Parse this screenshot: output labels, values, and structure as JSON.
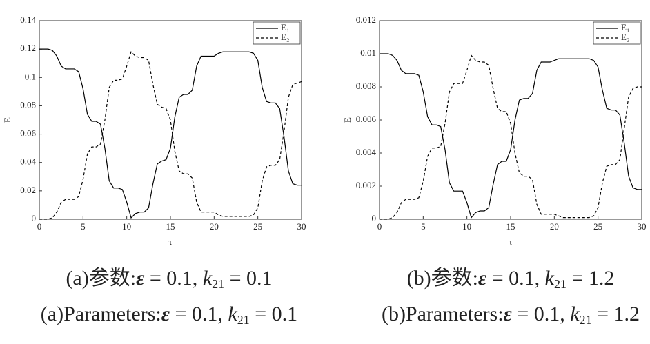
{
  "chart_data": [
    {
      "type": "line",
      "xlabel": "τ",
      "ylabel": "E",
      "xlim": [
        0,
        30
      ],
      "ylim": [
        0,
        0.14
      ],
      "xticks": [
        0,
        5,
        10,
        15,
        20,
        25,
        30
      ],
      "yticks": [
        0,
        0.02,
        0.04,
        0.06,
        0.08,
        0.1,
        0.12,
        0.14
      ],
      "legend": "upper right",
      "caption_cn": {
        "label": "(a)参数:",
        "eps": "ε",
        "eps_value": " = 0.1, ",
        "k": "k",
        "k_sub": "21",
        "k_value": " = 0.1"
      },
      "caption_en": {
        "label": "(a)Parameters:",
        "eps": "ε",
        "eps_value": " = 0.1, ",
        "k": "k",
        "k_sub": "21",
        "k_value": " = 0.1"
      },
      "x": [
        0,
        0.5,
        1,
        1.5,
        2,
        2.5,
        3,
        3.5,
        4,
        4.5,
        5,
        5.5,
        6,
        6.5,
        7,
        7.5,
        8,
        8.5,
        9,
        9.5,
        10,
        10.5,
        11,
        11.5,
        12,
        12.5,
        13,
        13.5,
        14,
        14.5,
        15,
        15.5,
        16,
        16.5,
        17,
        17.5,
        18,
        18.5,
        19,
        19.5,
        20,
        20.5,
        21,
        21.5,
        22,
        22.5,
        23,
        23.5,
        24,
        24.5,
        25,
        25.5,
        26,
        26.5,
        27,
        27.5,
        28,
        28.5,
        29,
        29.5,
        30
      ],
      "series": [
        {
          "name": "E₁",
          "color": "#000000",
          "linestyle": "solid",
          "values": [
            0.12,
            0.12,
            0.12,
            0.119,
            0.115,
            0.108,
            0.106,
            0.106,
            0.106,
            0.104,
            0.092,
            0.074,
            0.069,
            0.069,
            0.067,
            0.05,
            0.027,
            0.022,
            0.022,
            0.021,
            0.012,
            0.001,
            0.004,
            0.005,
            0.005,
            0.008,
            0.025,
            0.039,
            0.041,
            0.042,
            0.05,
            0.072,
            0.086,
            0.088,
            0.088,
            0.091,
            0.108,
            0.115,
            0.115,
            0.115,
            0.115,
            0.117,
            0.118,
            0.118,
            0.118,
            0.118,
            0.118,
            0.118,
            0.118,
            0.117,
            0.112,
            0.093,
            0.083,
            0.082,
            0.082,
            0.078,
            0.058,
            0.034,
            0.025,
            0.024,
            0.024
          ]
        },
        {
          "name": "E₂",
          "color": "#000000",
          "linestyle": "dashed",
          "values": [
            0,
            0,
            0,
            0.001,
            0.005,
            0.012,
            0.014,
            0.014,
            0.014,
            0.016,
            0.028,
            0.046,
            0.051,
            0.051,
            0.053,
            0.07,
            0.093,
            0.098,
            0.098,
            0.099,
            0.108,
            0.118,
            0.115,
            0.114,
            0.114,
            0.112,
            0.095,
            0.081,
            0.079,
            0.078,
            0.07,
            0.048,
            0.034,
            0.032,
            0.032,
            0.029,
            0.012,
            0.005,
            0.005,
            0.005,
            0.005,
            0.003,
            0.002,
            0.002,
            0.002,
            0.002,
            0.002,
            0.002,
            0.002,
            0.003,
            0.008,
            0.027,
            0.037,
            0.038,
            0.038,
            0.042,
            0.062,
            0.086,
            0.095,
            0.096,
            0.097
          ]
        }
      ]
    },
    {
      "type": "line",
      "xlabel": "τ",
      "ylabel": "E",
      "xlim": [
        0,
        30
      ],
      "ylim": [
        0,
        0.012
      ],
      "xticks": [
        0,
        5,
        10,
        15,
        20,
        25,
        30
      ],
      "yticks": [
        0,
        0.002,
        0.004,
        0.006,
        0.008,
        0.01,
        0.012
      ],
      "legend": "upper right",
      "caption_cn": {
        "label": "(b)参数:",
        "eps": "ε",
        "eps_value": " = 0.1, ",
        "k": "k",
        "k_sub": "21",
        "k_value": " = 1.2"
      },
      "caption_en": {
        "label": "(b)Parameters:",
        "eps": "ε",
        "eps_value": " = 0.1, ",
        "k": "k",
        "k_sub": "21",
        "k_value": " = 1.2"
      },
      "x": [
        0,
        0.5,
        1,
        1.5,
        2,
        2.5,
        3,
        3.5,
        4,
        4.5,
        5,
        5.5,
        6,
        6.5,
        7,
        7.5,
        8,
        8.5,
        9,
        9.5,
        10,
        10.5,
        11,
        11.5,
        12,
        12.5,
        13,
        13.5,
        14,
        14.5,
        15,
        15.5,
        16,
        16.5,
        17,
        17.5,
        18,
        18.5,
        19,
        19.5,
        20,
        20.5,
        21,
        21.5,
        22,
        22.5,
        23,
        23.5,
        24,
        24.5,
        25,
        25.5,
        26,
        26.5,
        27,
        27.5,
        28,
        28.5,
        29,
        29.5,
        30
      ],
      "series": [
        {
          "name": "E₁",
          "color": "#000000",
          "linestyle": "solid",
          "values": [
            0.01,
            0.01,
            0.01,
            0.0099,
            0.0096,
            0.009,
            0.0088,
            0.0088,
            0.0088,
            0.0087,
            0.0077,
            0.0062,
            0.0057,
            0.0057,
            0.0056,
            0.0042,
            0.0022,
            0.0017,
            0.0017,
            0.0017,
            0.001,
            0.0001,
            0.0004,
            0.0005,
            0.0005,
            0.0007,
            0.0021,
            0.0033,
            0.0035,
            0.0035,
            0.0042,
            0.006,
            0.0072,
            0.0073,
            0.0073,
            0.0076,
            0.009,
            0.0095,
            0.0095,
            0.0095,
            0.0096,
            0.0097,
            0.0097,
            0.0097,
            0.0097,
            0.0097,
            0.0097,
            0.0097,
            0.0097,
            0.0096,
            0.0092,
            0.0078,
            0.0067,
            0.0066,
            0.0066,
            0.0063,
            0.0046,
            0.0026,
            0.0019,
            0.0018,
            0.0018
          ]
        },
        {
          "name": "E₂",
          "color": "#000000",
          "linestyle": "dashed",
          "values": [
            0,
            0,
            0,
            0.0001,
            0.0004,
            0.001,
            0.0012,
            0.0012,
            0.0012,
            0.0013,
            0.0023,
            0.0038,
            0.0043,
            0.0043,
            0.0044,
            0.0058,
            0.0077,
            0.0082,
            0.0082,
            0.0082,
            0.009,
            0.0099,
            0.0096,
            0.0095,
            0.0095,
            0.0093,
            0.0079,
            0.0067,
            0.0065,
            0.0065,
            0.0058,
            0.004,
            0.0028,
            0.0026,
            0.0026,
            0.0024,
            0.0009,
            0.0003,
            0.0003,
            0.0003,
            0.0003,
            0.0002,
            0.0001,
            0.0001,
            0.0001,
            0.0001,
            0.0001,
            0.0001,
            0.0001,
            0.0002,
            0.0007,
            0.0022,
            0.0032,
            0.0033,
            0.0033,
            0.0036,
            0.0055,
            0.0074,
            0.0079,
            0.008,
            0.008
          ]
        }
      ]
    }
  ]
}
